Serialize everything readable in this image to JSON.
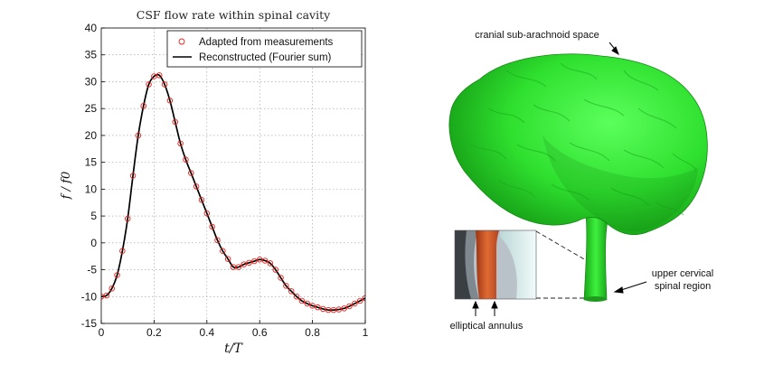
{
  "chart_data": {
    "type": "line",
    "title": "CSF flow rate within spinal cavity",
    "xlabel": "t/T",
    "ylabel": "f / f0",
    "xlim": [
      0,
      1
    ],
    "ylim": [
      -15,
      40
    ],
    "xticks": [
      "0",
      "0.2",
      "0.4",
      "0.6",
      "0.8",
      "1"
    ],
    "yticks": [
      "-15",
      "-10",
      "-5",
      "0",
      "5",
      "10",
      "15",
      "20",
      "25",
      "30",
      "35",
      "40"
    ],
    "grid": true,
    "legend_position": "top-right",
    "series": [
      {
        "name": "Adapted from measurements",
        "style": "markers",
        "color": "#e8201a",
        "x": [
          0.0,
          0.02,
          0.04,
          0.06,
          0.08,
          0.1,
          0.12,
          0.14,
          0.16,
          0.18,
          0.2,
          0.22,
          0.24,
          0.26,
          0.28,
          0.3,
          0.32,
          0.34,
          0.36,
          0.38,
          0.4,
          0.42,
          0.44,
          0.46,
          0.48,
          0.5,
          0.52,
          0.54,
          0.56,
          0.58,
          0.6,
          0.62,
          0.64,
          0.66,
          0.68,
          0.7,
          0.72,
          0.74,
          0.76,
          0.78,
          0.8,
          0.82,
          0.84,
          0.86,
          0.88,
          0.9,
          0.92,
          0.94,
          0.96,
          0.98,
          1.0
        ],
        "y": [
          -10.0,
          -9.8,
          -8.5,
          -6.0,
          -1.5,
          4.5,
          12.5,
          20.0,
          25.5,
          29.5,
          31.0,
          31.2,
          29.5,
          26.5,
          22.5,
          18.5,
          15.5,
          13.0,
          10.5,
          8.0,
          5.5,
          3.0,
          0.5,
          -1.5,
          -3.0,
          -4.5,
          -4.5,
          -4.0,
          -3.7,
          -3.4,
          -3.1,
          -3.3,
          -3.8,
          -5.0,
          -6.5,
          -8.0,
          -9.0,
          -10.0,
          -10.8,
          -11.3,
          -11.7,
          -12.0,
          -12.3,
          -12.5,
          -12.5,
          -12.4,
          -12.2,
          -11.8,
          -11.3,
          -10.8,
          -10.3
        ]
      },
      {
        "name": "Reconstructed (Fourier sum)",
        "style": "line",
        "color": "#000000",
        "x": [
          0.0,
          0.02,
          0.04,
          0.06,
          0.08,
          0.1,
          0.12,
          0.14,
          0.16,
          0.18,
          0.2,
          0.22,
          0.24,
          0.26,
          0.28,
          0.3,
          0.32,
          0.34,
          0.36,
          0.38,
          0.4,
          0.42,
          0.44,
          0.46,
          0.48,
          0.5,
          0.52,
          0.54,
          0.56,
          0.58,
          0.6,
          0.62,
          0.64,
          0.66,
          0.68,
          0.7,
          0.72,
          0.74,
          0.76,
          0.78,
          0.8,
          0.82,
          0.84,
          0.86,
          0.88,
          0.9,
          0.92,
          0.94,
          0.96,
          0.98,
          1.0
        ],
        "y": [
          -10.0,
          -9.8,
          -8.5,
          -6.0,
          -1.5,
          4.5,
          12.5,
          20.0,
          25.5,
          29.5,
          31.0,
          31.2,
          29.5,
          26.5,
          22.5,
          18.5,
          15.5,
          13.0,
          10.5,
          8.0,
          5.5,
          3.0,
          0.5,
          -1.5,
          -3.0,
          -4.5,
          -4.5,
          -4.0,
          -3.7,
          -3.4,
          -3.1,
          -3.3,
          -3.8,
          -5.0,
          -6.5,
          -8.0,
          -9.0,
          -10.0,
          -10.8,
          -11.3,
          -11.7,
          -12.0,
          -12.3,
          -12.5,
          -12.5,
          -12.4,
          -12.2,
          -11.8,
          -11.3,
          -10.8,
          -10.3
        ]
      }
    ]
  },
  "anatomy": {
    "labels": {
      "cranial": "cranial sub-arachnoid space",
      "cervical_line1": "upper cervical",
      "cervical_line2": "spinal region",
      "annulus": "elliptical annulus"
    },
    "colors": {
      "brain": "#2ee62e",
      "brain_dark": "#1a9e1a",
      "annulus_orange": "#c8552a",
      "annulus_grey": "#9aa3ab",
      "annulus_light": "#dfeeee"
    }
  }
}
